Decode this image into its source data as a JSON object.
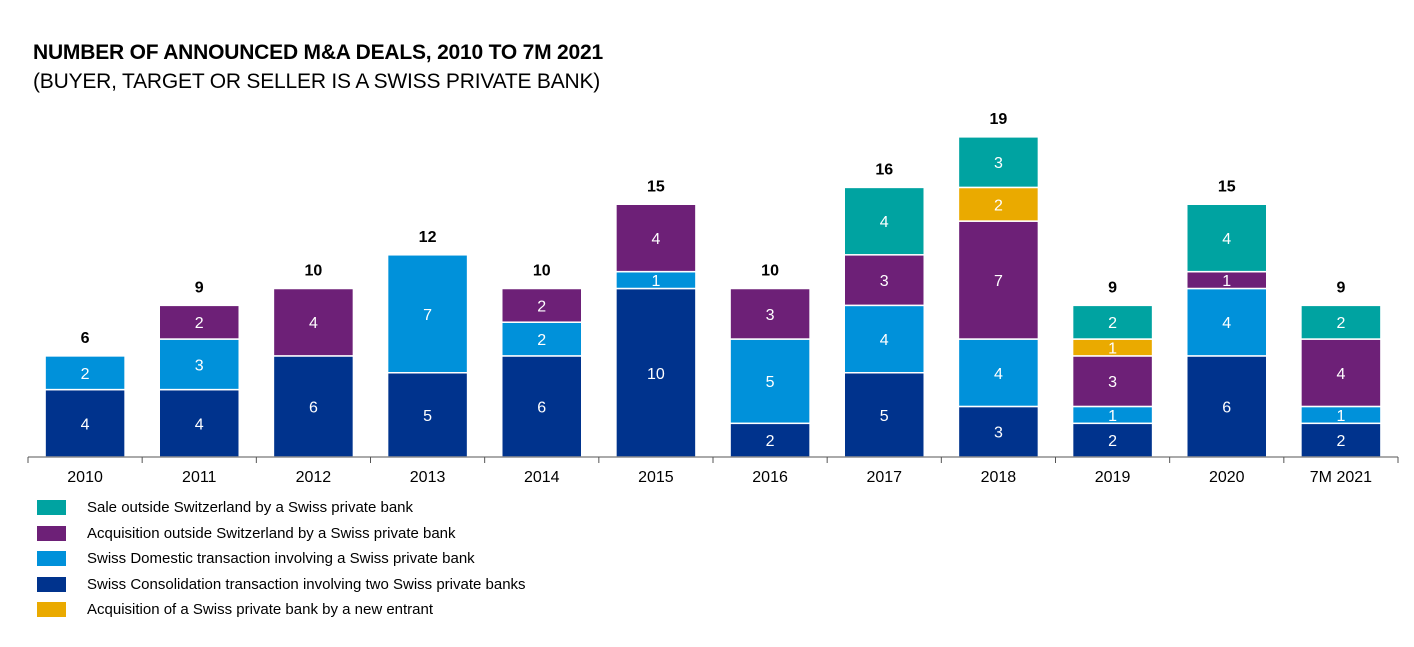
{
  "chart_data": {
    "type": "bar",
    "stacked": true,
    "title": "NUMBER OF ANNOUNCED M&A DEALS, 2010 TO 7M 2021",
    "subtitle": "(BUYER, TARGET OR SELLER IS A SWISS PRIVATE BANK)",
    "xlabel": "",
    "ylabel": "",
    "ylim": [
      0,
      19
    ],
    "grid": false,
    "legend_position": "bottom-left",
    "categories": [
      "2010",
      "2011",
      "2012",
      "2013",
      "2014",
      "2015",
      "2016",
      "2017",
      "2018",
      "2019",
      "2020",
      "7M 2021"
    ],
    "totals": [
      6,
      9,
      10,
      12,
      10,
      15,
      10,
      16,
      19,
      9,
      15,
      9
    ],
    "series": [
      {
        "name": "Swiss Consolidation transaction involving two Swiss private banks",
        "color": "#00338D",
        "values": [
          4,
          4,
          6,
          5,
          6,
          10,
          2,
          5,
          3,
          2,
          6,
          2
        ]
      },
      {
        "name": "Swiss Domestic transaction involving a Swiss private bank",
        "color": "#0091DA",
        "values": [
          2,
          3,
          0,
          7,
          2,
          1,
          5,
          4,
          4,
          1,
          4,
          1
        ]
      },
      {
        "name": "Acquisition outside Switzerland by a Swiss private bank",
        "color": "#6D2077",
        "values": [
          0,
          2,
          4,
          0,
          2,
          4,
          3,
          3,
          7,
          3,
          1,
          4
        ]
      },
      {
        "name": "Acquisition of a Swiss private bank by a new entrant",
        "color": "#EAAA00",
        "values": [
          0,
          0,
          0,
          0,
          0,
          0,
          0,
          0,
          2,
          1,
          0,
          0
        ]
      },
      {
        "name": "Sale outside Switzerland by a Swiss private bank",
        "color": "#00A3A1",
        "values": [
          0,
          0,
          0,
          0,
          0,
          0,
          0,
          4,
          3,
          2,
          4,
          2
        ]
      }
    ],
    "legend": [
      {
        "label": "Sale outside Switzerland by a Swiss private bank",
        "color": "#00A3A1"
      },
      {
        "label": "Acquisition outside Switzerland by a Swiss private bank",
        "color": "#6D2077"
      },
      {
        "label": "Swiss Domestic transaction involving a Swiss private bank",
        "color": "#0091DA"
      },
      {
        "label": "Swiss Consolidation transaction involving two Swiss private banks",
        "color": "#00338D"
      },
      {
        "label": "Acquisition of a Swiss private bank by a new entrant",
        "color": "#EAAA00"
      }
    ]
  }
}
